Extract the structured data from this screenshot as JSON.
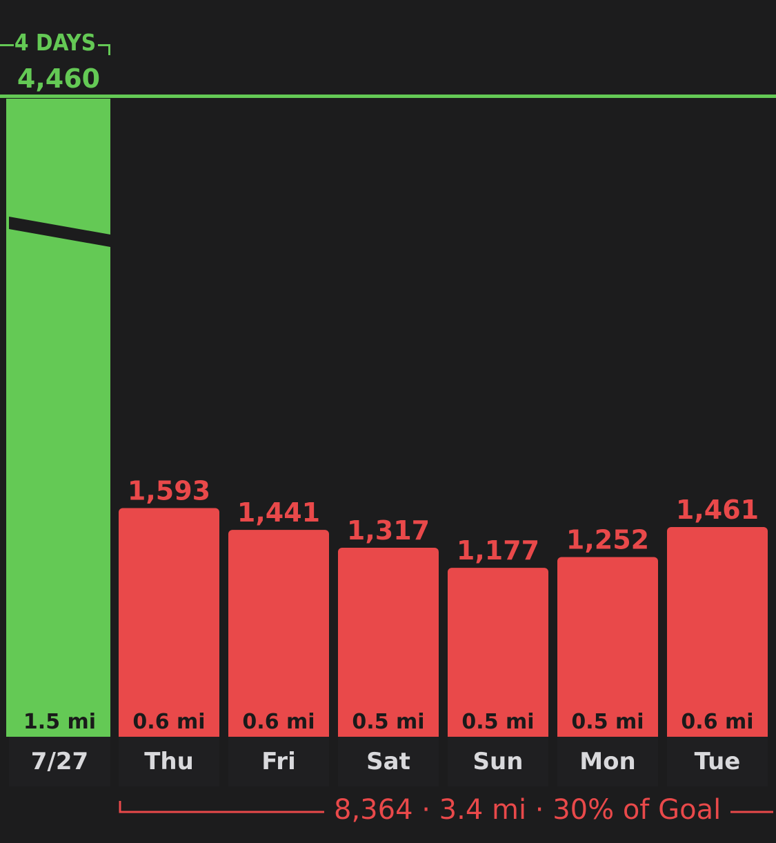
{
  "streak": {
    "label": "4 DAYS",
    "total": "4,460",
    "color": "#64c955"
  },
  "summary": {
    "text": "8,364 · 3.4 mi · 30% of Goal",
    "color": "#e9494a"
  },
  "colors": {
    "background": "#1c1c1d",
    "goal_met": "#64c955",
    "goal_missed": "#e9494a",
    "tick_text": "#d9d9dc"
  },
  "chart_data": {
    "type": "bar",
    "categories": [
      "7/27",
      "Thu",
      "Fri",
      "Sat",
      "Sun",
      "Mon",
      "Tue"
    ],
    "values": [
      4460,
      1593,
      1441,
      1317,
      1177,
      1252,
      1461
    ],
    "value_labels": [
      "",
      "1,593",
      "1,441",
      "1,317",
      "1,177",
      "1,252",
      "1,461"
    ],
    "distance_labels": [
      "1.5 mi",
      "0.6 mi",
      "0.6 mi",
      "0.5 mi",
      "0.5 mi",
      "0.5 mi",
      "0.6 mi"
    ],
    "goal_met": [
      true,
      false,
      false,
      false,
      false,
      false,
      false
    ],
    "goal_line": 4460,
    "title": "",
    "xlabel": "",
    "ylabel": ""
  }
}
